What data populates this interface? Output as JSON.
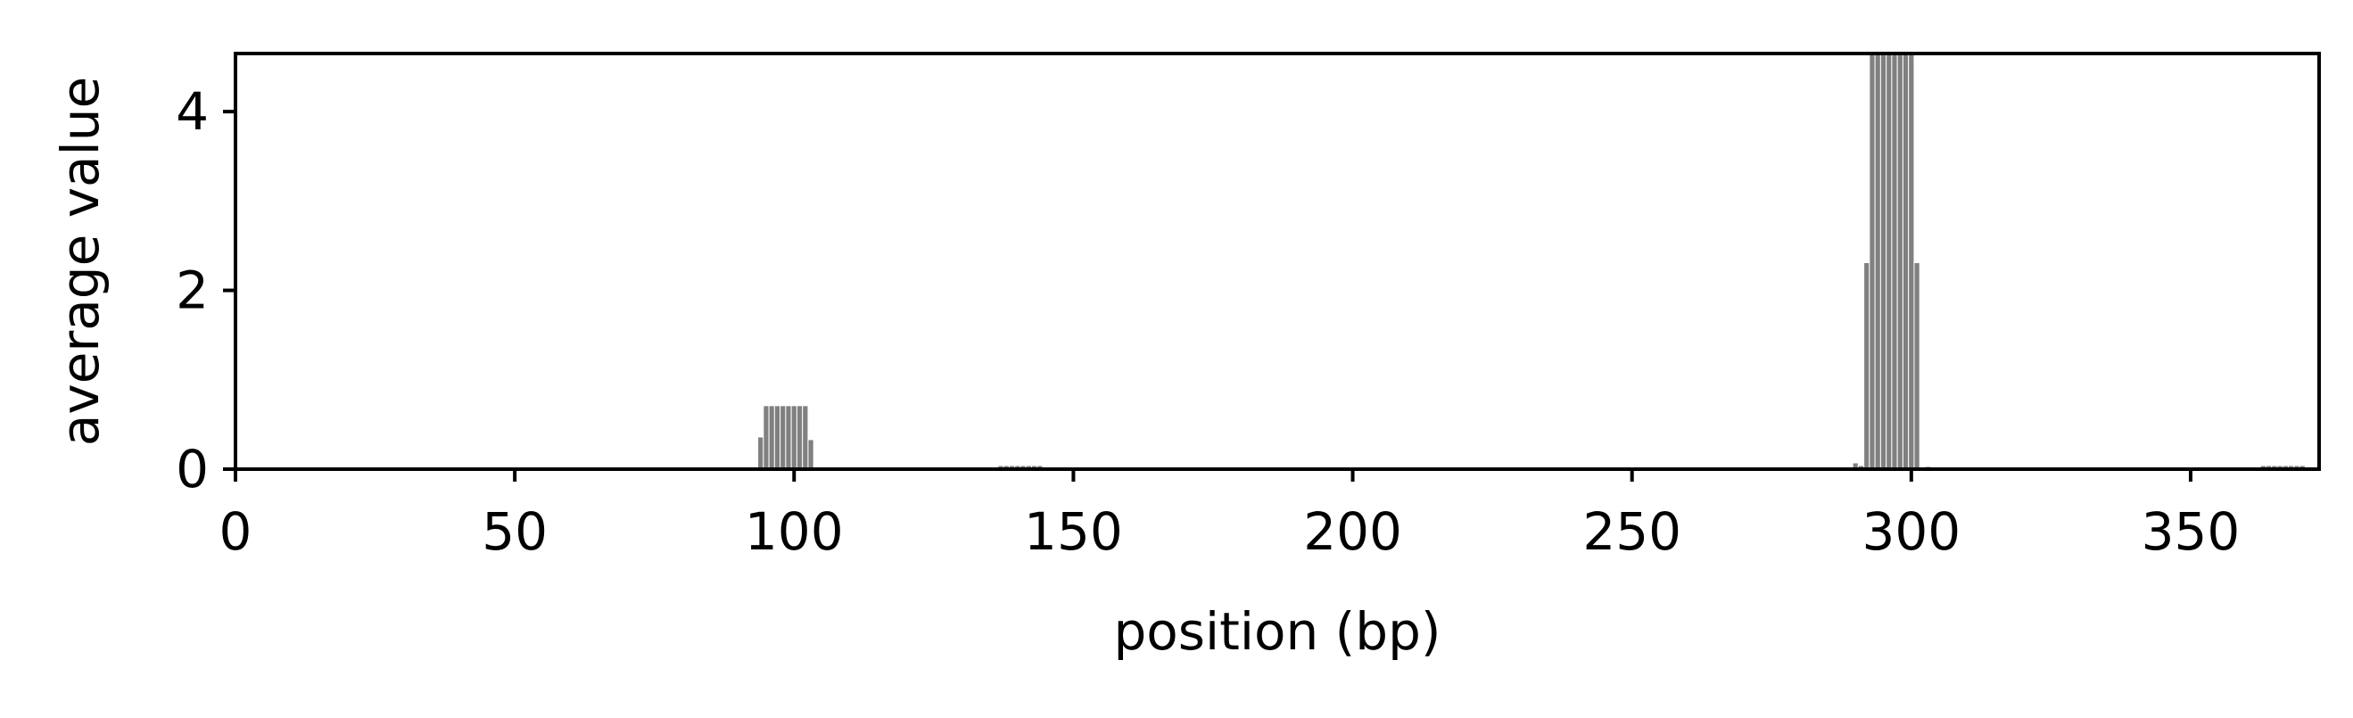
{
  "chart_data": {
    "type": "bar",
    "title": "",
    "xlabel": "position (bp)",
    "ylabel": "average value",
    "xlim": [
      0,
      373
    ],
    "ylim": [
      0,
      4.65
    ],
    "x_ticks": [
      0,
      50,
      100,
      150,
      200,
      250,
      300,
      350
    ],
    "x_tick_labels": [
      "0",
      "50",
      "100",
      "150",
      "200",
      "250",
      "300",
      "350"
    ],
    "y_ticks": [
      0,
      2,
      4
    ],
    "y_tick_labels": [
      "0",
      "2",
      "4"
    ],
    "grid": false,
    "bar_color": "#808080",
    "bar_edge_color": "#ffffff",
    "axis_color": "#000000",
    "background_color": "#ffffff",
    "bars": [
      {
        "x": 94,
        "value": 0.36
      },
      {
        "x": 95,
        "value": 0.71
      },
      {
        "x": 96,
        "value": 0.71
      },
      {
        "x": 97,
        "value": 0.71
      },
      {
        "x": 98,
        "value": 0.71
      },
      {
        "x": 99,
        "value": 0.71
      },
      {
        "x": 100,
        "value": 0.71
      },
      {
        "x": 101,
        "value": 0.71
      },
      {
        "x": 102,
        "value": 0.71
      },
      {
        "x": 103,
        "value": 0.33
      },
      {
        "x": 137,
        "value": 0.04
      },
      {
        "x": 138,
        "value": 0.04
      },
      {
        "x": 139,
        "value": 0.04
      },
      {
        "x": 140,
        "value": 0.04
      },
      {
        "x": 141,
        "value": 0.04
      },
      {
        "x": 142,
        "value": 0.04
      },
      {
        "x": 143,
        "value": 0.04
      },
      {
        "x": 144,
        "value": 0.04
      },
      {
        "x": 290,
        "value": 0.07
      },
      {
        "x": 291,
        "value": 0.04
      },
      {
        "x": 292,
        "value": 2.31
      },
      {
        "x": 293,
        "value": 4.65
      },
      {
        "x": 294,
        "value": 4.65
      },
      {
        "x": 295,
        "value": 4.65
      },
      {
        "x": 296,
        "value": 4.65
      },
      {
        "x": 297,
        "value": 4.65
      },
      {
        "x": 298,
        "value": 4.65
      },
      {
        "x": 299,
        "value": 4.65
      },
      {
        "x": 300,
        "value": 4.65
      },
      {
        "x": 301,
        "value": 2.31
      },
      {
        "x": 303,
        "value": 0.03
      },
      {
        "x": 363,
        "value": 0.04
      },
      {
        "x": 364,
        "value": 0.04
      },
      {
        "x": 365,
        "value": 0.04
      },
      {
        "x": 366,
        "value": 0.04
      },
      {
        "x": 367,
        "value": 0.04
      },
      {
        "x": 368,
        "value": 0.04
      },
      {
        "x": 369,
        "value": 0.04
      },
      {
        "x": 370,
        "value": 0.04
      }
    ]
  }
}
